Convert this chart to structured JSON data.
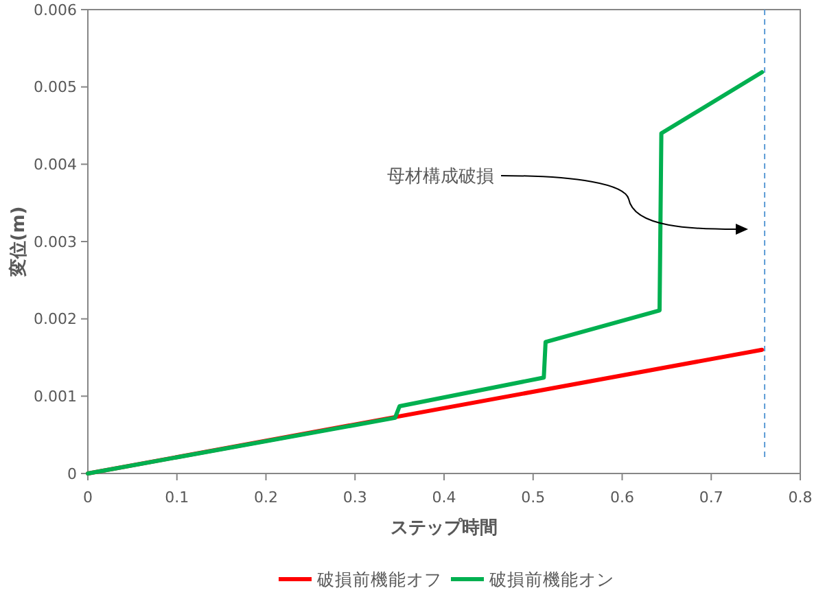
{
  "chart_data": {
    "type": "line",
    "xlabel": "ステップ時間",
    "ylabel": "変位(m)",
    "xlim": [
      0,
      0.8
    ],
    "xticks": [
      0,
      0.1,
      0.2,
      0.3,
      0.4,
      0.5,
      0.6,
      0.7,
      0.8
    ],
    "ylim": [
      0,
      0.006
    ],
    "yticks": [
      0,
      0.001,
      0.002,
      0.003,
      0.004,
      0.005,
      0.006
    ],
    "series": [
      {
        "name": "破損前機能オフ",
        "color": "#ff0000",
        "x": [
          0,
          0.757
        ],
        "values": [
          0,
          0.0016
        ]
      },
      {
        "name": "破損前機能オン",
        "color": "#00b050",
        "x": [
          0,
          0.345,
          0.35,
          0.512,
          0.514,
          0.642,
          0.644,
          0.757
        ],
        "values": [
          0,
          0.00072,
          0.00087,
          0.00124,
          0.0017,
          0.00211,
          0.0044,
          0.00519
        ]
      }
    ],
    "ref_lines": [
      {
        "axis": "x",
        "value": 0.76,
        "color": "#5b9bd5",
        "line_style": "dashed"
      }
    ],
    "annotations": [
      "母材構成破損"
    ],
    "legend": "bottom",
    "marker": "none",
    "line_style": "solid",
    "grid": false
  }
}
